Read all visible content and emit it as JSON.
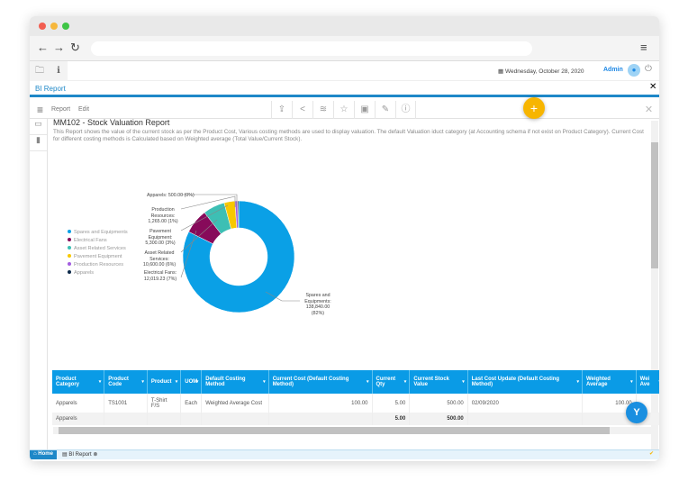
{
  "header": {
    "date": "Wednesday, October 28, 2020",
    "user": "Admin"
  },
  "tab": {
    "title": "BI Report"
  },
  "toolbar": {
    "report": "Report",
    "edit": "Edit"
  },
  "report": {
    "title": "MM102 - Stock Valuation Report",
    "description": "This Report shows the value of the current stock as per the Product Cost,  Various costing methods are used to display valuation. The default Valuation iduct category (at Accounting schema if not exist on Product Category). Current Cost for different costing methods is Calculated based on Weighted average (Total Value/Current Stock)."
  },
  "chart_data": {
    "type": "pie",
    "donut": true,
    "categories": [
      "Spares and Equipments",
      "Electrical Fans",
      "Asset Related Services",
      "Pavement Equipment",
      "Production Resources",
      "Apparels"
    ],
    "values": [
      138840.0,
      12019.23,
      10600.0,
      5300.0,
      1265.0,
      500.0
    ],
    "labels": [
      "Spares and Equipments: 138,840.00 (82%)",
      "Electrical Fans: 12,019.23 (7%)",
      "Asset Related Services: 10,600.00 (6%)",
      "Pavement Equipment: 5,300.00 (3%)",
      "Production Resources: 1,265.00 (1%)",
      "Apparels: 500.00 (0%)"
    ],
    "colors": [
      "#0aa0e6",
      "#870a5a",
      "#3dbfb4",
      "#f8c800",
      "#a35de0",
      "#0d2a4a"
    ],
    "legend": "left"
  },
  "table": {
    "columns": [
      "Product Category",
      "Product Code",
      "Product",
      "UOM",
      "Default Costing Method",
      "Current Cost (Default Costing Method)",
      "Current Qty",
      "Current Stock Value",
      "Last Cost Update (Default Costing Method)",
      "Weighted Average",
      "Wei Ave"
    ],
    "rows": [
      [
        "Apparels",
        "TS1001",
        "T-Shirt F/S",
        "Each",
        "Weighted Average Cost",
        "100.00",
        "5.00",
        "500.00",
        "02/09/2020",
        "100.00",
        ""
      ]
    ],
    "total": {
      "label": "Apparels",
      "qty": "5.00",
      "value": "500.00"
    }
  },
  "taskbar": {
    "home": "Home",
    "tab": "BI Report"
  }
}
